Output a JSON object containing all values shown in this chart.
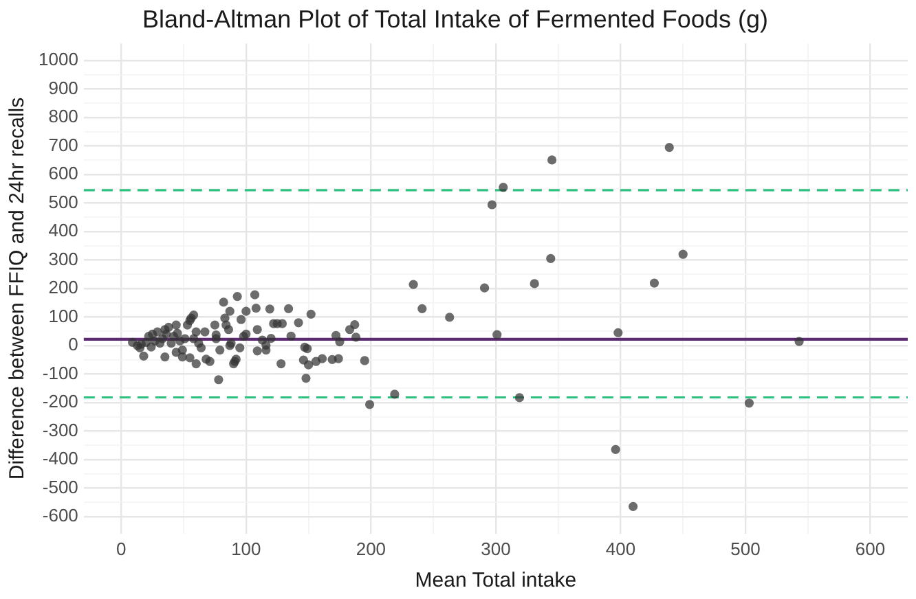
{
  "chart_data": {
    "type": "scatter",
    "title": "Bland-Altman Plot of Total Intake of Fermented Foods (g)",
    "xlabel": "Mean Total intake",
    "ylabel": "Difference between FFIQ and 24hr recalls",
    "x": [
      9,
      13,
      15,
      16,
      20,
      22,
      24,
      25,
      27,
      29,
      31,
      33,
      35,
      36,
      38,
      40,
      42,
      44,
      45,
      47,
      49,
      51,
      53,
      55,
      56,
      58,
      58,
      60,
      62,
      64,
      18,
      35,
      44,
      49,
      55,
      60,
      67,
      68,
      71,
      75,
      76,
      76,
      78,
      79,
      82,
      83,
      84,
      86,
      87,
      87,
      88,
      90,
      91,
      92,
      93,
      95,
      96,
      98,
      100,
      100,
      107,
      108,
      119,
      134,
      152,
      122,
      125,
      129,
      142,
      109,
      187,
      183,
      136,
      172,
      175,
      188,
      113,
      120,
      116,
      116,
      109,
      147,
      149,
      128,
      146,
      150,
      156,
      161,
      169,
      174,
      148,
      195,
      439,
      345,
      306,
      297,
      450,
      344,
      234,
      291,
      331,
      427,
      241,
      263,
      301,
      398,
      543,
      219,
      199,
      319,
      503,
      396,
      410
    ],
    "values": [
      11,
      0,
      -8,
      5,
      11,
      32,
      -5,
      40,
      16,
      48,
      8,
      24,
      56,
      40,
      64,
      8,
      32,
      72,
      43,
      16,
      -16,
      24,
      72,
      88,
      96,
      107,
      24,
      48,
      8,
      -8,
      -37,
      -40,
      -24,
      -40,
      -43,
      -64,
      48,
      -48,
      -56,
      72,
      37,
      24,
      -120,
      -16,
      152,
      96,
      72,
      56,
      0,
      120,
      8,
      -64,
      -56,
      -48,
      172,
      -8,
      91,
      32,
      120,
      40,
      178,
      131,
      128,
      129,
      110,
      77,
      77,
      77,
      80,
      56,
      73,
      56,
      33,
      35,
      13,
      29,
      19,
      25,
      1,
      -16,
      -19,
      -6,
      -11,
      -64,
      -51,
      -68,
      -56,
      -46,
      -49,
      -46,
      -115,
      -53,
      695,
      651,
      555,
      494,
      320,
      305,
      214,
      202,
      217,
      219,
      129,
      99,
      38,
      45,
      14,
      -171,
      -207,
      -183,
      -202,
      -365,
      -565
    ],
    "color": "#333333",
    "marker": "circle",
    "xlim": [
      -30,
      630
    ],
    "xticks": [
      0,
      {
        "value": 50,
        "label": null
      },
      100,
      {
        "value": 150,
        "label": null
      },
      200,
      {
        "value": 250,
        "label": null
      },
      300,
      {
        "value": 350,
        "label": null
      },
      400,
      {
        "value": 450,
        "label": null
      },
      500,
      {
        "value": 550,
        "label": null
      },
      600
    ],
    "ylim": [
      -660,
      1060
    ],
    "yticks": [
      -600,
      {
        "value": -550,
        "label": null
      },
      -500,
      {
        "value": -450,
        "label": null
      },
      -400,
      {
        "value": -350,
        "label": null
      },
      -300,
      {
        "value": -250,
        "label": null
      },
      -200,
      {
        "value": -150,
        "label": null
      },
      -100,
      {
        "value": -50,
        "label": null
      },
      0,
      {
        "value": 50,
        "label": null
      },
      100,
      {
        "value": 150,
        "label": null
      },
      200,
      {
        "value": 250,
        "label": null
      },
      300,
      {
        "value": 350,
        "label": null
      },
      400,
      {
        "value": 450,
        "label": null
      },
      500,
      {
        "value": 550,
        "label": null
      },
      600,
      {
        "value": 650,
        "label": null
      },
      700,
      {
        "value": 750,
        "label": null
      },
      800,
      {
        "value": 850,
        "label": null
      },
      900,
      {
        "value": 950,
        "label": null
      },
      1000
    ],
    "grid": true,
    "legend": false,
    "ref_lines": [
      {
        "axis": "y",
        "value": 545,
        "color": "#2fbf7f",
        "line_style": "dashed"
      },
      {
        "axis": "y",
        "value": 22,
        "color": "#5c2a70",
        "line_style": "solid"
      },
      {
        "axis": "y",
        "value": -182,
        "color": "#2fbf7f",
        "line_style": "dashed"
      }
    ]
  }
}
